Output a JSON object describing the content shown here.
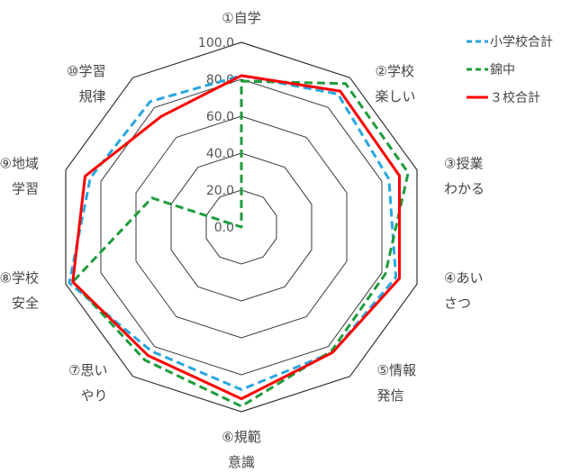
{
  "chart_data": {
    "type": "radar",
    "title": "",
    "categories": [
      [
        "①自学",
        ""
      ],
      [
        "②学校",
        "楽しい"
      ],
      [
        "③授業",
        "わかる"
      ],
      [
        "④あい",
        "さつ"
      ],
      [
        "⑤情報",
        "発信"
      ],
      [
        "⑥規範",
        "意識"
      ],
      [
        "⑦思い",
        "やり"
      ],
      [
        "⑧学校",
        "安全"
      ],
      [
        "⑨地域",
        "学習"
      ],
      [
        "⑩学習",
        "規律"
      ]
    ],
    "ticks": [
      "0.0",
      "20.0",
      "40.0",
      "60.0",
      "80.0",
      "100.0"
    ],
    "range": [
      0,
      100
    ],
    "grid": true,
    "legend_position": "top-right",
    "series": [
      {
        "name": "小学校合計",
        "color": "#2aa7e0",
        "dash": "dashed",
        "values": [
          82,
          89,
          84,
          88,
          84,
          88,
          83,
          98,
          86,
          84
        ]
      },
      {
        "name": "錦中",
        "color": "#1e9c3c",
        "dash": "dashed",
        "values": [
          79,
          96,
          95,
          82,
          83,
          97,
          89,
          96,
          51,
          0
        ]
      },
      {
        "name": "３校合計",
        "color": "#ff0000",
        "dash": "solid",
        "values": [
          82,
          91,
          90,
          90,
          84,
          93,
          86,
          96,
          89,
          74
        ]
      }
    ]
  }
}
